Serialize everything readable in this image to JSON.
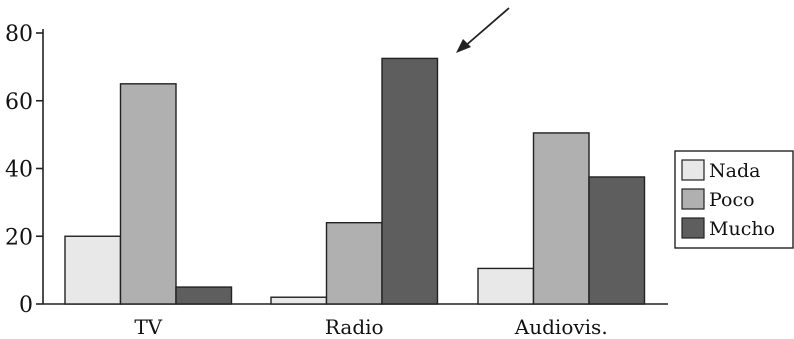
{
  "chart_data": {
    "type": "bar",
    "categories": [
      "TV",
      "Radio",
      "Audiovis."
    ],
    "series": [
      {
        "name": "Nada",
        "values": [
          20,
          2,
          10.5
        ],
        "color": "#e8e8e8"
      },
      {
        "name": "Poco",
        "values": [
          65,
          24,
          50.5
        ],
        "color": "#b0b0b0"
      },
      {
        "name": "Mucho",
        "values": [
          5,
          72.5,
          37.5
        ],
        "color": "#5e5e5e"
      }
    ],
    "yticks": [
      0,
      20,
      40,
      60,
      80
    ],
    "ylim": [
      0,
      80
    ],
    "legend_position": "right",
    "annotation": {
      "type": "arrow",
      "points_to": "Radio / Mucho"
    }
  }
}
